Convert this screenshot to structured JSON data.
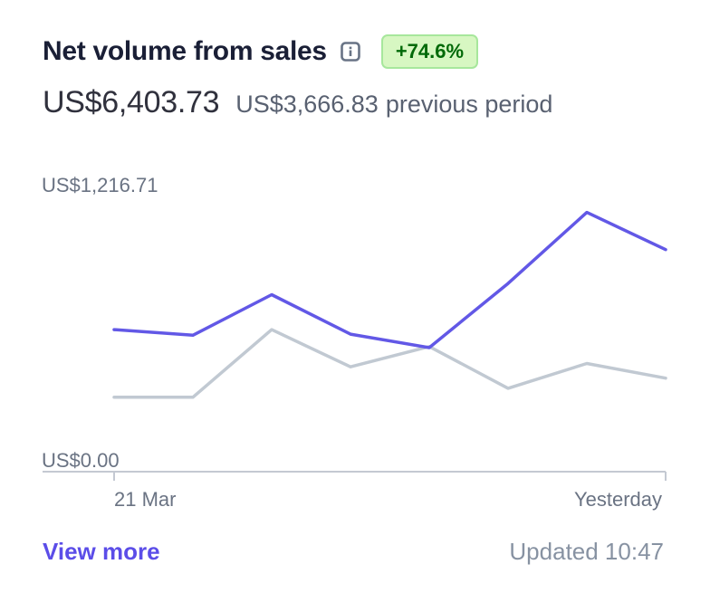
{
  "card": {
    "title": "Net volume from sales",
    "change_badge": "+74.6%",
    "current_value": "US$6,403.73",
    "previous_value": "US$3,666.83",
    "previous_label": "previous period",
    "view_more": "View more",
    "updated": "Updated 10:47",
    "info_icon": "info-icon"
  },
  "colors": {
    "current_series": "#6258e6",
    "previous_series": "#c1c9d2",
    "badge_bg": "#d7f7c2",
    "badge_text": "#006908",
    "link": "#5b4de8"
  },
  "chart_data": {
    "type": "line",
    "x": [
      "21 Mar",
      "",
      "",
      "",
      "",
      "",
      "",
      "Yesterday"
    ],
    "series": [
      {
        "values": [
          630,
          605,
          785,
          610,
          550,
          835,
          1150,
          985
        ],
        "color": "#6258e6"
      },
      {
        "values": [
          330,
          330,
          630,
          465,
          555,
          370,
          480,
          415
        ],
        "color": "#c1c9d2"
      }
    ],
    "ylim": [
      0,
      1216.71
    ],
    "y_tick_labels": [
      "US$0.00",
      "US$1,216.71"
    ],
    "x_tick_labels": [
      "21 Mar",
      "Yesterday"
    ],
    "grid": false,
    "legend": "none"
  }
}
